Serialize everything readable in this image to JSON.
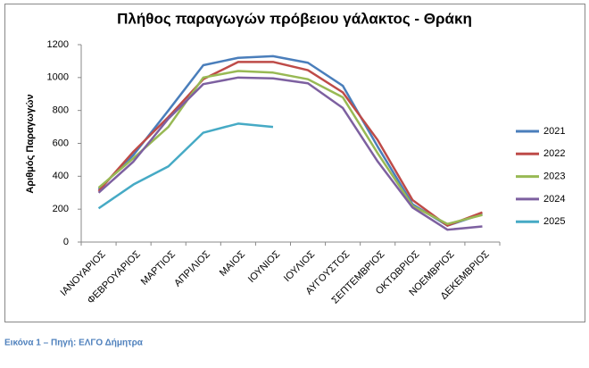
{
  "chart_data": {
    "type": "line",
    "title": "Πλήθος παραγωγών πρόβειου γάλακτος - Θράκη",
    "y_label": "Αριθμός Παραγωγών",
    "categories": [
      "ΙΑΝΟΥΑΡΙΟΣ",
      "ΦΕΒΡΟΥΑΡΙΟΣ",
      "ΜΑΡΤΙΟΣ",
      "ΑΠΡΙΛΙΟΣ",
      "ΜΑΙΟΣ",
      "ΙΟΥΝΙΟΣ",
      "ΙΟΥΛΙΟΣ",
      "ΑΥΓΟΥΣΤΟΣ",
      "ΣΕΠΤΕΜΒΡΙΟΣ",
      "ΟΚΤΩΒΡΙΟΣ",
      "ΝΟΕΜΒΡΙΟΣ",
      "ΔΕΚΕΜΒΡΙΟΣ"
    ],
    "series": [
      {
        "name": "2021",
        "color": "#4a7ebb",
        "values": [
          320,
          530,
          800,
          1075,
          1120,
          1130,
          1090,
          950,
          580,
          230,
          100,
          170
        ]
      },
      {
        "name": "2022",
        "color": "#be4b48",
        "values": [
          310,
          550,
          760,
          990,
          1095,
          1095,
          1045,
          910,
          620,
          255,
          100,
          180
        ]
      },
      {
        "name": "2023",
        "color": "#98b954",
        "values": [
          330,
          510,
          700,
          1000,
          1040,
          1030,
          990,
          880,
          540,
          220,
          110,
          165
        ]
      },
      {
        "name": "2024",
        "color": "#7d60a0",
        "values": [
          300,
          490,
          750,
          960,
          1000,
          995,
          965,
          815,
          490,
          210,
          75,
          95
        ]
      },
      {
        "name": "2025",
        "color": "#46aac5",
        "values": [
          205,
          350,
          460,
          665,
          720,
          700,
          null,
          null,
          null,
          null,
          null,
          null
        ]
      }
    ],
    "ylim": [
      0,
      1200
    ],
    "yticks": [
      0,
      200,
      400,
      600,
      800,
      1000,
      1200
    ],
    "grid": false,
    "legend": "right"
  },
  "caption": "Εικόνα 1 – Πηγή: ΕΛΓΟ Δήμητρα"
}
